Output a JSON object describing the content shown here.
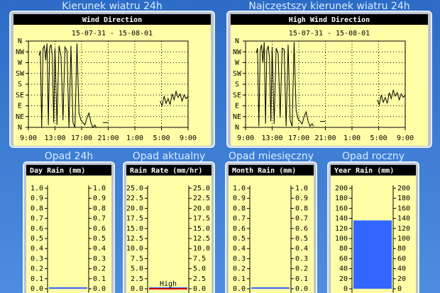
{
  "chart_data": [
    {
      "type": "line",
      "title": "Kierunek wiatru 24h",
      "subtitle": "Wind Direction",
      "date_range": "15-07-31 - 15-08-01",
      "color": "#000000",
      "grid": true,
      "x": [
        1.6,
        1.8,
        2.0,
        2.2,
        2.4,
        2.6,
        2.8,
        3.0,
        3.2,
        3.4,
        3.6,
        3.8,
        4.0,
        4.3,
        4.6,
        4.9,
        5.2,
        5.5,
        5.8,
        6.1,
        6.4,
        6.7,
        7.0,
        7.3,
        7.6,
        7.9,
        8.2,
        8.5,
        8.8,
        9.1,
        9.4,
        9.7,
        10.0,
        10.2,
        10.5,
        11.2,
        12.0,
        12.3,
        19.8,
        20.1,
        20.4,
        20.7,
        21.0,
        21.3,
        21.6,
        21.9,
        22.2,
        22.5,
        22.8,
        23.1,
        23.4,
        23.7,
        24.0
      ],
      "values": [
        300,
        320,
        0,
        330,
        340,
        280,
        350,
        10,
        330,
        345,
        300,
        20,
        330,
        10,
        340,
        300,
        30,
        335,
        320,
        0,
        340,
        20,
        0,
        350,
        60,
        30,
        20,
        10,
        40,
        60,
        20,
        0,
        10,
        0,
        null,
        20,
        20,
        null,
        110,
        90,
        130,
        100,
        120,
        95,
        140,
        115,
        150,
        125,
        140,
        110,
        135,
        120,
        130
      ],
      "xlim": [
        0,
        24
      ],
      "xticks": [
        {
          "value": 0,
          "label": "9:00"
        },
        {
          "value": 4,
          "label": "13:00"
        },
        {
          "value": 8,
          "label": "17:00"
        },
        {
          "value": 12,
          "label": "21:00"
        },
        {
          "value": 16,
          "label": "1:00"
        },
        {
          "value": 20,
          "label": "5:00"
        },
        {
          "value": 24,
          "label": "9:00"
        }
      ],
      "ylim": [
        0,
        360
      ],
      "yticks": [
        {
          "value": 0,
          "label": "N"
        },
        {
          "value": 45,
          "label": "NE"
        },
        {
          "value": 90,
          "label": "E"
        },
        {
          "value": 135,
          "label": "SE"
        },
        {
          "value": 180,
          "label": "S"
        },
        {
          "value": 225,
          "label": "SW"
        },
        {
          "value": 270,
          "label": "W"
        },
        {
          "value": 315,
          "label": "NW"
        },
        {
          "value": 360,
          "label": "N"
        }
      ]
    },
    {
      "type": "line",
      "title": "Najczęstszy kierunek wiatru 24h",
      "subtitle": "High Wind Direction",
      "date_range": "15-07-31 - 15-08-01",
      "color": "#000000",
      "grid": true,
      "x": [
        1.6,
        1.8,
        2.0,
        2.2,
        2.4,
        2.6,
        2.8,
        3.0,
        3.2,
        3.4,
        3.6,
        3.8,
        4.0,
        4.3,
        4.6,
        4.9,
        5.2,
        5.5,
        5.8,
        6.1,
        6.4,
        6.7,
        7.0,
        7.3,
        7.6,
        7.9,
        8.2,
        8.5,
        8.8,
        9.1,
        9.4,
        9.7,
        10.0,
        10.2,
        10.5,
        11.2,
        12.0,
        12.3,
        19.8,
        20.1,
        20.4,
        20.7,
        21.0,
        21.3,
        21.6,
        21.9,
        22.2,
        22.5,
        22.8,
        23.1,
        23.4,
        23.7,
        24.0
      ],
      "values": [
        310,
        330,
        5,
        320,
        345,
        270,
        355,
        15,
        320,
        340,
        290,
        25,
        335,
        15,
        330,
        310,
        40,
        330,
        325,
        5,
        345,
        30,
        5,
        355,
        70,
        35,
        25,
        15,
        45,
        65,
        25,
        5,
        15,
        5,
        null,
        25,
        25,
        null,
        115,
        95,
        135,
        105,
        125,
        100,
        145,
        120,
        155,
        130,
        145,
        115,
        140,
        125,
        135
      ],
      "xlim": [
        0,
        24
      ],
      "xticks": [
        {
          "value": 0,
          "label": "9:00"
        },
        {
          "value": 4,
          "label": "13:00"
        },
        {
          "value": 8,
          "label": "17:00"
        },
        {
          "value": 12,
          "label": "21:00"
        },
        {
          "value": 16,
          "label": "1:00"
        },
        {
          "value": 20,
          "label": "5:00"
        },
        {
          "value": 24,
          "label": "9:00"
        }
      ],
      "ylim": [
        0,
        360
      ],
      "yticks": [
        {
          "value": 0,
          "label": "N"
        },
        {
          "value": 45,
          "label": "NE"
        },
        {
          "value": 90,
          "label": "E"
        },
        {
          "value": 135,
          "label": "SE"
        },
        {
          "value": 180,
          "label": "S"
        },
        {
          "value": 225,
          "label": "SW"
        },
        {
          "value": 270,
          "label": "W"
        },
        {
          "value": 315,
          "label": "NW"
        },
        {
          "value": 360,
          "label": "N"
        }
      ]
    },
    {
      "type": "bar",
      "title": "Opad 24h",
      "subtitle": "Day Rain (mm)",
      "values": [
        0
      ],
      "color": "#3366ff",
      "ylim": [
        0,
        1
      ],
      "yticks": [
        {
          "value": 0,
          "label": "0.0"
        },
        0.1,
        0.2,
        0.3,
        0.4,
        0.5,
        0.6,
        0.7,
        0.8,
        0.9,
        {
          "value": 1,
          "label": "1.0"
        }
      ]
    },
    {
      "type": "bar",
      "title": "Opad aktualny",
      "subtitle": "Rain Rate (mm/hr)",
      "values": [
        0
      ],
      "color": "#3366ff",
      "high_marker": {
        "label": "High",
        "value": 0,
        "color": "#cc0000"
      },
      "ylim": [
        0,
        25
      ],
      "yticks": [
        {
          "value": 0,
          "label": "0.0"
        },
        2.5,
        {
          "value": 5,
          "label": "5.0"
        },
        7.5,
        {
          "value": 10,
          "label": "10.0"
        },
        12.5,
        {
          "value": 15,
          "label": "15.0"
        },
        17.5,
        {
          "value": 20,
          "label": "20.0"
        },
        22.5,
        {
          "value": 25,
          "label": "25.0"
        }
      ]
    },
    {
      "type": "bar",
      "title": "Opad miesięczny",
      "subtitle": "Month Rain (mm)",
      "values": [
        0
      ],
      "color": "#3366ff",
      "ylim": [
        0,
        1
      ],
      "yticks": [
        {
          "value": 0,
          "label": "0.0"
        },
        0.1,
        0.2,
        0.3,
        0.4,
        0.5,
        0.6,
        0.7,
        0.8,
        0.9,
        {
          "value": 1,
          "label": "1.0"
        }
      ]
    },
    {
      "type": "bar",
      "title": "Opad roczny",
      "subtitle": "Year Rain (mm)",
      "values": [
        136
      ],
      "color": "#3366ff",
      "ylim": [
        0,
        200
      ],
      "yticks": [
        0,
        20,
        40,
        60,
        80,
        100,
        120,
        140,
        160,
        180,
        200
      ]
    }
  ]
}
